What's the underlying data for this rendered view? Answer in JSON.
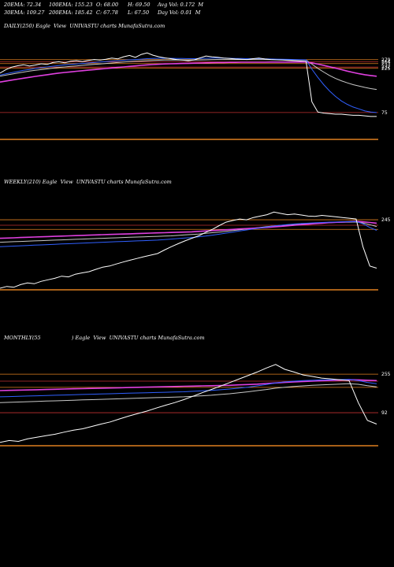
{
  "header": {
    "row1": [
      "20EMA: 72.34",
      "100EMA: 155.23",
      "O: 68.00",
      "H: 69.50",
      "Avg Vol: 0.172  M"
    ],
    "row2": [
      "30EMA: 109.27",
      "200EMA: 185.42",
      "C: 67.78",
      "L: 67.50",
      "Day Vol: 0.01  M"
    ]
  },
  "colors": {
    "background": "#000000",
    "price": "#ffffff",
    "ema_blue": "#3060ff",
    "ema_magenta": "#e040e0",
    "ema_gray": "#c8c8c8",
    "band_orange": "#e08020",
    "band_red": "#c03030"
  },
  "chart_data": [
    {
      "type": "line",
      "title": "DAILY(250) Eagle  View  UNIVASTU charts MunafaSutra.com",
      "tick_labels": [
        "279",
        "264",
        "253",
        "232",
        "225",
        "75"
      ],
      "bands": [
        279,
        264,
        253,
        232,
        225,
        75
      ],
      "ylim": [
        40,
        380
      ],
      "log": true,
      "series": [
        {
          "role": "price",
          "values": [
            200,
            218,
            232,
            240,
            246,
            238,
            244,
            252,
            248,
            260,
            265,
            258,
            268,
            272,
            266,
            274,
            280,
            276,
            282,
            290,
            285,
            300,
            310,
            296,
            318,
            330,
            312,
            300,
            292,
            286,
            280,
            276,
            272,
            278,
            292,
            306,
            300,
            296,
            290,
            288,
            284,
            282,
            280,
            286,
            290,
            284,
            280,
            278,
            276,
            274,
            272,
            270,
            268,
            98,
            76,
            74,
            73,
            72,
            72,
            71,
            70,
            70,
            69,
            68,
            68
          ]
        },
        {
          "role": "ema_blue",
          "values": [
            190,
            196,
            202,
            208,
            214,
            219,
            224,
            229,
            233,
            237,
            241,
            245,
            248,
            251,
            254,
            257,
            260,
            263,
            266,
            269,
            272,
            275,
            278,
            280,
            283,
            286,
            288,
            289,
            289,
            289,
            288,
            287,
            286,
            286,
            287,
            289,
            290,
            290,
            290,
            289,
            288,
            287,
            286,
            286,
            286,
            285,
            284,
            283,
            282,
            281,
            280,
            279,
            278,
            220,
            180,
            150,
            128,
            112,
            100,
            92,
            86,
            82,
            78,
            76,
            75
          ]
        },
        {
          "role": "ema_gray",
          "values": [
            185,
            190,
            195,
            200,
            205,
            210,
            214,
            218,
            222,
            226,
            230,
            233,
            236,
            239,
            242,
            245,
            248,
            251,
            254,
            257,
            260,
            263,
            266,
            268,
            270,
            272,
            274,
            275,
            276,
            276,
            276,
            276,
            276,
            276,
            277,
            278,
            279,
            280,
            280,
            280,
            280,
            280,
            280,
            280,
            280,
            280,
            279,
            279,
            278,
            278,
            277,
            277,
            276,
            250,
            225,
            205,
            188,
            175,
            165,
            157,
            150,
            145,
            140,
            136,
            133
          ]
        },
        {
          "role": "ema_magenta",
          "values": [
            160,
            164,
            168,
            172,
            176,
            180,
            184,
            188,
            192,
            196,
            200,
            203,
            206,
            209,
            212,
            215,
            218,
            221,
            224,
            227,
            230,
            233,
            236,
            239,
            242,
            245,
            247,
            249,
            251,
            252,
            253,
            254,
            255,
            256,
            257,
            258,
            259,
            260,
            260,
            261,
            261,
            262,
            262,
            262,
            262,
            262,
            263,
            263,
            263,
            263,
            263,
            263,
            263,
            258,
            250,
            242,
            234,
            226,
            218,
            210,
            203,
            197,
            192,
            188,
            185
          ]
        }
      ]
    },
    {
      "type": "line",
      "title": "WEEKLY(210) Eagle  View  UNIVASTU charts MunafaSutra.com",
      "tick_labels": [
        "245"
      ],
      "bands": [
        245,
        212,
        190
      ],
      "ylim": [
        40,
        380
      ],
      "log": true,
      "series": [
        {
          "role": "price",
          "values": [
            40,
            42,
            41,
            44,
            46,
            45,
            48,
            50,
            52,
            55,
            54,
            58,
            60,
            62,
            66,
            70,
            72,
            76,
            80,
            84,
            88,
            92,
            96,
            100,
            110,
            120,
            130,
            140,
            150,
            160,
            175,
            190,
            210,
            230,
            240,
            250,
            245,
            260,
            270,
            280,
            300,
            290,
            280,
            285,
            278,
            270,
            268,
            275,
            270,
            265,
            260,
            255,
            250,
            120,
            72,
            68
          ]
        },
        {
          "role": "ema_blue",
          "values": [
            120,
            121,
            122,
            123,
            124,
            125,
            126,
            127,
            128,
            129,
            130,
            131,
            132,
            133,
            134,
            135,
            136,
            137,
            138,
            139,
            140,
            141,
            142,
            143,
            145,
            147,
            149,
            151,
            153,
            156,
            159,
            163,
            167,
            172,
            177,
            182,
            187,
            192,
            197,
            202,
            208,
            212,
            216,
            219,
            222,
            224,
            226,
            228,
            230,
            231,
            232,
            233,
            234,
            220,
            200,
            185
          ]
        },
        {
          "role": "ema_magenta",
          "values": [
            150,
            151,
            152,
            153,
            154,
            155,
            156,
            157,
            158,
            159,
            160,
            161,
            162,
            163,
            164,
            165,
            166,
            167,
            168,
            169,
            170,
            171,
            172,
            173,
            174,
            175,
            176,
            177,
            178,
            180,
            182,
            184,
            186,
            188,
            190,
            192,
            194,
            196,
            198,
            200,
            203,
            206,
            209,
            212,
            215,
            218,
            221,
            224,
            227,
            229,
            231,
            233,
            235,
            232,
            228,
            224
          ]
        },
        {
          "role": "ema_gray",
          "values": [
            135,
            136,
            137,
            138,
            139,
            140,
            141,
            142,
            143,
            144,
            145,
            146,
            147,
            148,
            149,
            150,
            151,
            152,
            153,
            154,
            155,
            156,
            157,
            158,
            159,
            160,
            162,
            164,
            166,
            168,
            171,
            174,
            177,
            180,
            184,
            188,
            192,
            196,
            200,
            204,
            208,
            211,
            214,
            217,
            219,
            221,
            223,
            225,
            227,
            228,
            229,
            230,
            231,
            225,
            215,
            205
          ]
        }
      ]
    },
    {
      "type": "line",
      "title": "MONTHLY(55                   ) Eagle  View  UNIVASTU charts MunafaSutra.com",
      "tick_labels": [
        "255",
        "92"
      ],
      "bands": [
        255,
        212,
        180,
        92
      ],
      "ylim": [
        40,
        380
      ],
      "log": true,
      "series": [
        {
          "role": "price",
          "values": [
            42,
            44,
            43,
            46,
            48,
            50,
            52,
            55,
            58,
            60,
            64,
            68,
            72,
            78,
            84,
            90,
            96,
            104,
            112,
            120,
            130,
            142,
            156,
            170,
            186,
            204,
            224,
            246,
            270,
            300,
            330,
            290,
            270,
            250,
            240,
            230,
            225,
            220,
            215,
            120,
            75,
            68
          ]
        },
        {
          "role": "ema_blue",
          "values": [
            140,
            141,
            142,
            143,
            144,
            145,
            146,
            147,
            148,
            149,
            150,
            151,
            152,
            153,
            154,
            155,
            156,
            157,
            158,
            159,
            160,
            162,
            164,
            166,
            169,
            172,
            176,
            181,
            187,
            194,
            202,
            208,
            212,
            215,
            217,
            219,
            220,
            221,
            222,
            215,
            205,
            198
          ]
        },
        {
          "role": "ema_magenta",
          "values": [
            165,
            166,
            167,
            168,
            169,
            170,
            171,
            172,
            173,
            174,
            175,
            176,
            177,
            178,
            179,
            180,
            181,
            182,
            183,
            184,
            185,
            186,
            187,
            188,
            189,
            190,
            192,
            194,
            196,
            199,
            202,
            205,
            208,
            210,
            212,
            214,
            216,
            218,
            220,
            219,
            217,
            215
          ]
        },
        {
          "role": "ema_gray",
          "values": [
            120,
            121,
            122,
            123,
            124,
            125,
            126,
            127,
            128,
            129,
            130,
            131,
            132,
            133,
            134,
            135,
            136,
            137,
            138,
            139,
            140,
            142,
            144,
            146,
            149,
            152,
            156,
            160,
            165,
            170,
            176,
            180,
            184,
            187,
            190,
            192,
            194,
            196,
            198,
            195,
            188,
            182
          ]
        }
      ]
    }
  ]
}
